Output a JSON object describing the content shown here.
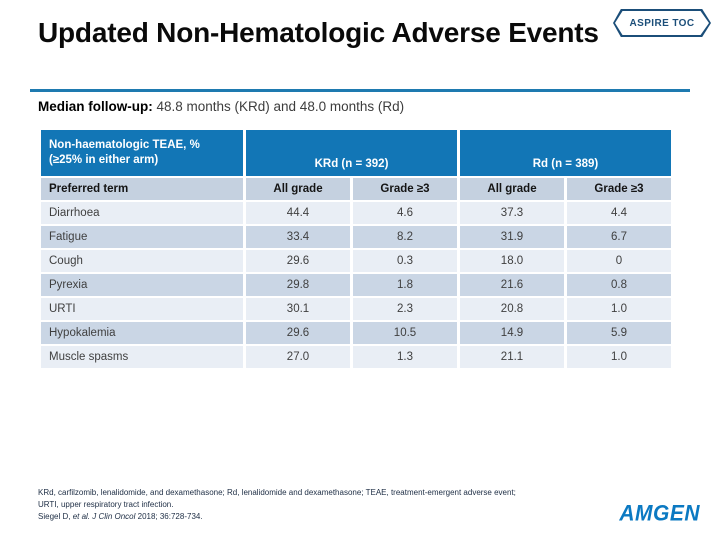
{
  "header": {
    "title": "Updated Non-Hematologic Adverse Events",
    "toc_button": "ASPIRE TOC"
  },
  "subtitle": {
    "label": "Median follow-up:",
    "value": " 48.8 months (KRd) and 48.0 months (Rd)"
  },
  "table": {
    "col1_header_line1": "Non-haematologic TEAE, %",
    "col1_header_line2": "(≥25% in either arm)",
    "group_headers": [
      "KRd (n = 392)",
      "Rd (n = 389)"
    ],
    "sub_headers": [
      "Preferred term",
      "All grade",
      "Grade ≥3",
      "All grade",
      "Grade ≥3"
    ],
    "rows": [
      {
        "term": "Diarrhoea",
        "values": [
          "44.4",
          "4.6",
          "37.3",
          "4.4"
        ]
      },
      {
        "term": "Fatigue",
        "values": [
          "33.4",
          "8.2",
          "31.9",
          "6.7"
        ]
      },
      {
        "term": "Cough",
        "values": [
          "29.6",
          "0.3",
          "18.0",
          "0"
        ]
      },
      {
        "term": "Pyrexia",
        "values": [
          "29.8",
          "1.8",
          "21.6",
          "0.8"
        ]
      },
      {
        "term": "URTI",
        "values": [
          "30.1",
          "2.3",
          "20.8",
          "1.0"
        ]
      },
      {
        "term": "Hypokalemia",
        "values": [
          "29.6",
          "10.5",
          "14.9",
          "5.9"
        ]
      },
      {
        "term": "Muscle spasms",
        "values": [
          "27.0",
          "1.3",
          "21.1",
          "1.0"
        ]
      }
    ]
  },
  "footnotes": {
    "line1": "KRd, carfilzomib, lenalidomide, and dexamethasone; Rd, lenalidomide and dexamethasone; TEAE, treatment-emergent adverse event;",
    "line2": "URTI, upper respiratory tract infection.",
    "citation": {
      "author": "Siegel D, ",
      "etal": "et al.",
      "sep": " ",
      "journal": "J Clin Oncol",
      "rest": " 2018; 36:728-734."
    }
  },
  "logo": "AMGEN",
  "colors": {
    "header_blue": "#1276b6",
    "divider_blue": "#1e7ab0",
    "subheader_bg": "#c5d1e0",
    "row_light": "#e9eef5",
    "row_dark": "#cad6e5",
    "toc_navy": "#1b4e79",
    "amgen_blue": "#0b79c2",
    "footnote_color": "#1d2d44"
  }
}
